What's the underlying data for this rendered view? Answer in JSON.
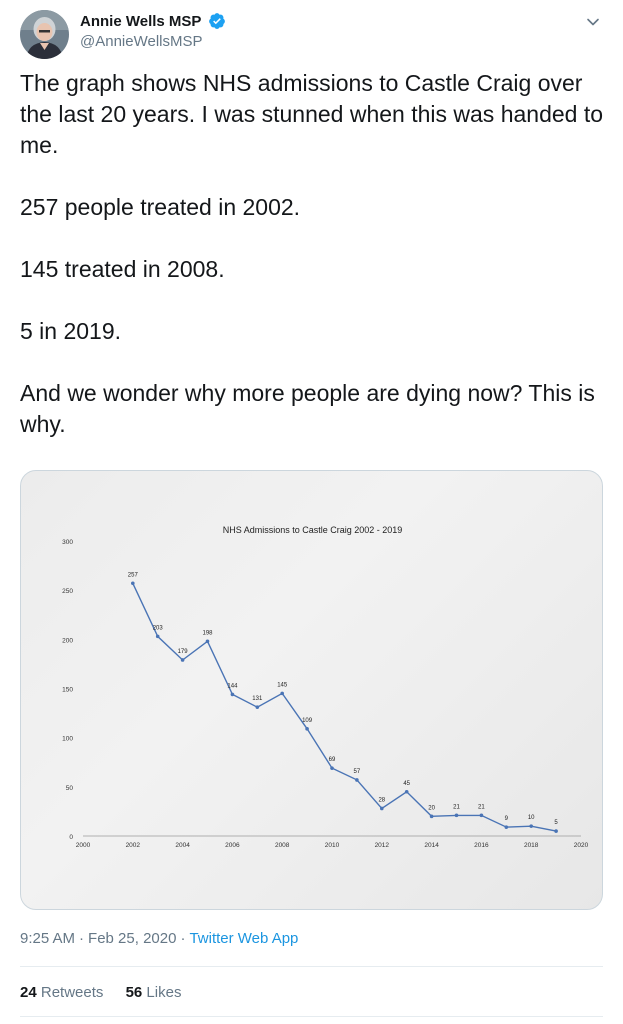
{
  "author": {
    "name": "Annie Wells MSP",
    "handle": "@AnnieWellsMSP",
    "verified": true
  },
  "icons": {
    "verified": "verified-badge-icon",
    "menu": "chevron-down-icon"
  },
  "tweet": {
    "paragraphs": [
      "The graph shows NHS admissions to Castle Craig over the last 20 years. I was stunned when this was handed to me.",
      "257 people treated in 2002.",
      "145 treated in 2008.",
      "5 in 2019.",
      "And we wonder why more people are dying now? This is why."
    ]
  },
  "meta": {
    "time": "9:25 AM",
    "date": "Feb 25, 2020",
    "source": "Twitter Web App"
  },
  "stats": {
    "retweets_count": "24",
    "retweets_label": "Retweets",
    "likes_count": "56",
    "likes_label": "Likes"
  },
  "colors": {
    "link": "#1b95e0",
    "verified": "#1da1f2",
    "line": "#4a74b5"
  },
  "chart_data": {
    "type": "line",
    "title": "NHS Admissions to Castle Craig 2002 - 2019",
    "x": [
      2002,
      2003,
      2004,
      2005,
      2006,
      2007,
      2008,
      2009,
      2010,
      2011,
      2012,
      2013,
      2014,
      2015,
      2016,
      2017,
      2018,
      2019
    ],
    "y": [
      257,
      203,
      179,
      198,
      144,
      131,
      145,
      109,
      69,
      57,
      28,
      45,
      20,
      21,
      21,
      9,
      10,
      5
    ],
    "xlim": [
      2000,
      2020
    ],
    "ylim": [
      0,
      300
    ],
    "xticks": [
      2000,
      2002,
      2004,
      2006,
      2008,
      2010,
      2012,
      2014,
      2016,
      2018,
      2020
    ],
    "yticks": [
      0,
      50,
      100,
      150,
      200,
      250,
      300
    ],
    "grid": false,
    "legend": "none"
  }
}
